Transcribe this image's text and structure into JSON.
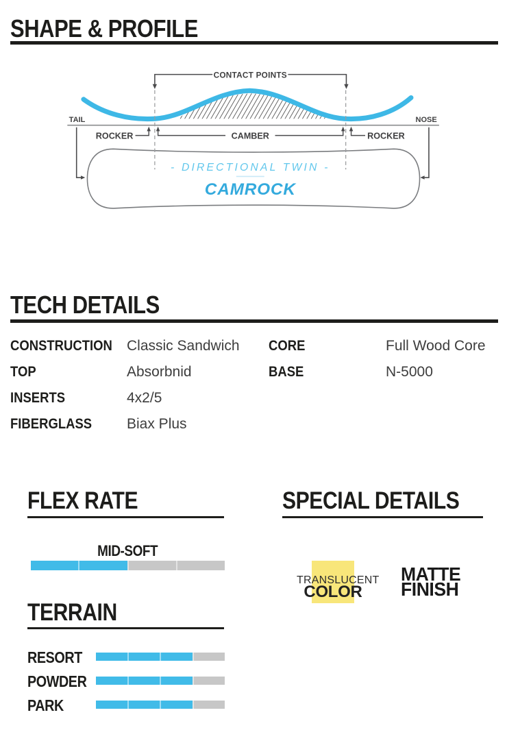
{
  "colors": {
    "accent_blue": "#3eb8e6",
    "brand_blue": "#34aadd",
    "light_blue": "#62c7ec",
    "bar_blue": "#41bbe8",
    "bar_gray": "#c7c7c7",
    "line_gray": "#8a8c8e",
    "ink": "#1d1d1b",
    "badge_yellow": "#f8e67a"
  },
  "shape_profile": {
    "title": "SHAPE & PROFILE",
    "diagram": {
      "contact_points_label": "CONTACT POINTS",
      "tail_label": "TAIL",
      "nose_label": "NOSE",
      "rocker_left_label": "ROCKER",
      "camber_label": "CAMBER",
      "rocker_right_label": "ROCKER",
      "board_type": "- DIRECTIONAL TWIN -",
      "board_profile_name": "CAMROCK"
    }
  },
  "tech_details": {
    "title": "TECH DETAILS",
    "left_rows": [
      {
        "label": "CONSTRUCTION",
        "value": "Classic Sandwich"
      },
      {
        "label": "TOP",
        "value": "Absorbnid"
      },
      {
        "label": "INSERTS",
        "value": "4x2/5"
      },
      {
        "label": "FIBERGLASS",
        "value": "Biax Plus"
      }
    ],
    "right_rows": [
      {
        "label": "CORE",
        "value": "Full Wood Core"
      },
      {
        "label": "BASE",
        "value": "N-5000"
      }
    ]
  },
  "flex_rate": {
    "title": "FLEX RATE",
    "rating_label": "MID-SOFT",
    "bar": {
      "filled_segments": 2,
      "total_segments": 4
    }
  },
  "special_details": {
    "title": "SPECIAL DETAILS",
    "translucent_badge": {
      "line1": "TRANSLUCENT",
      "line2": "COLOR"
    },
    "matte_badge": {
      "line1": "MATTE",
      "line2": "FINISH"
    }
  },
  "terrain": {
    "title": "TERRAIN",
    "rows": [
      {
        "label": "RESORT",
        "bar": {
          "filled_segments": 3,
          "total_segments": 4
        }
      },
      {
        "label": "POWDER",
        "bar": {
          "filled_segments": 3,
          "total_segments": 4
        }
      },
      {
        "label": "PARK",
        "bar": {
          "filled_segments": 3,
          "total_segments": 4
        }
      }
    ]
  },
  "chart_data": {
    "type": "bar",
    "title": "Flex and terrain ratings (fraction of bar filled, 4 segments)",
    "categories": [
      "FLEX (MID-SOFT)",
      "RESORT",
      "POWDER",
      "PARK"
    ],
    "values": [
      0.5,
      0.75,
      0.75,
      0.75
    ],
    "ylim": [
      0,
      1
    ],
    "legend": "off",
    "bar_filled_color": "#41bbe8",
    "bar_empty_color": "#c7c7c7"
  }
}
